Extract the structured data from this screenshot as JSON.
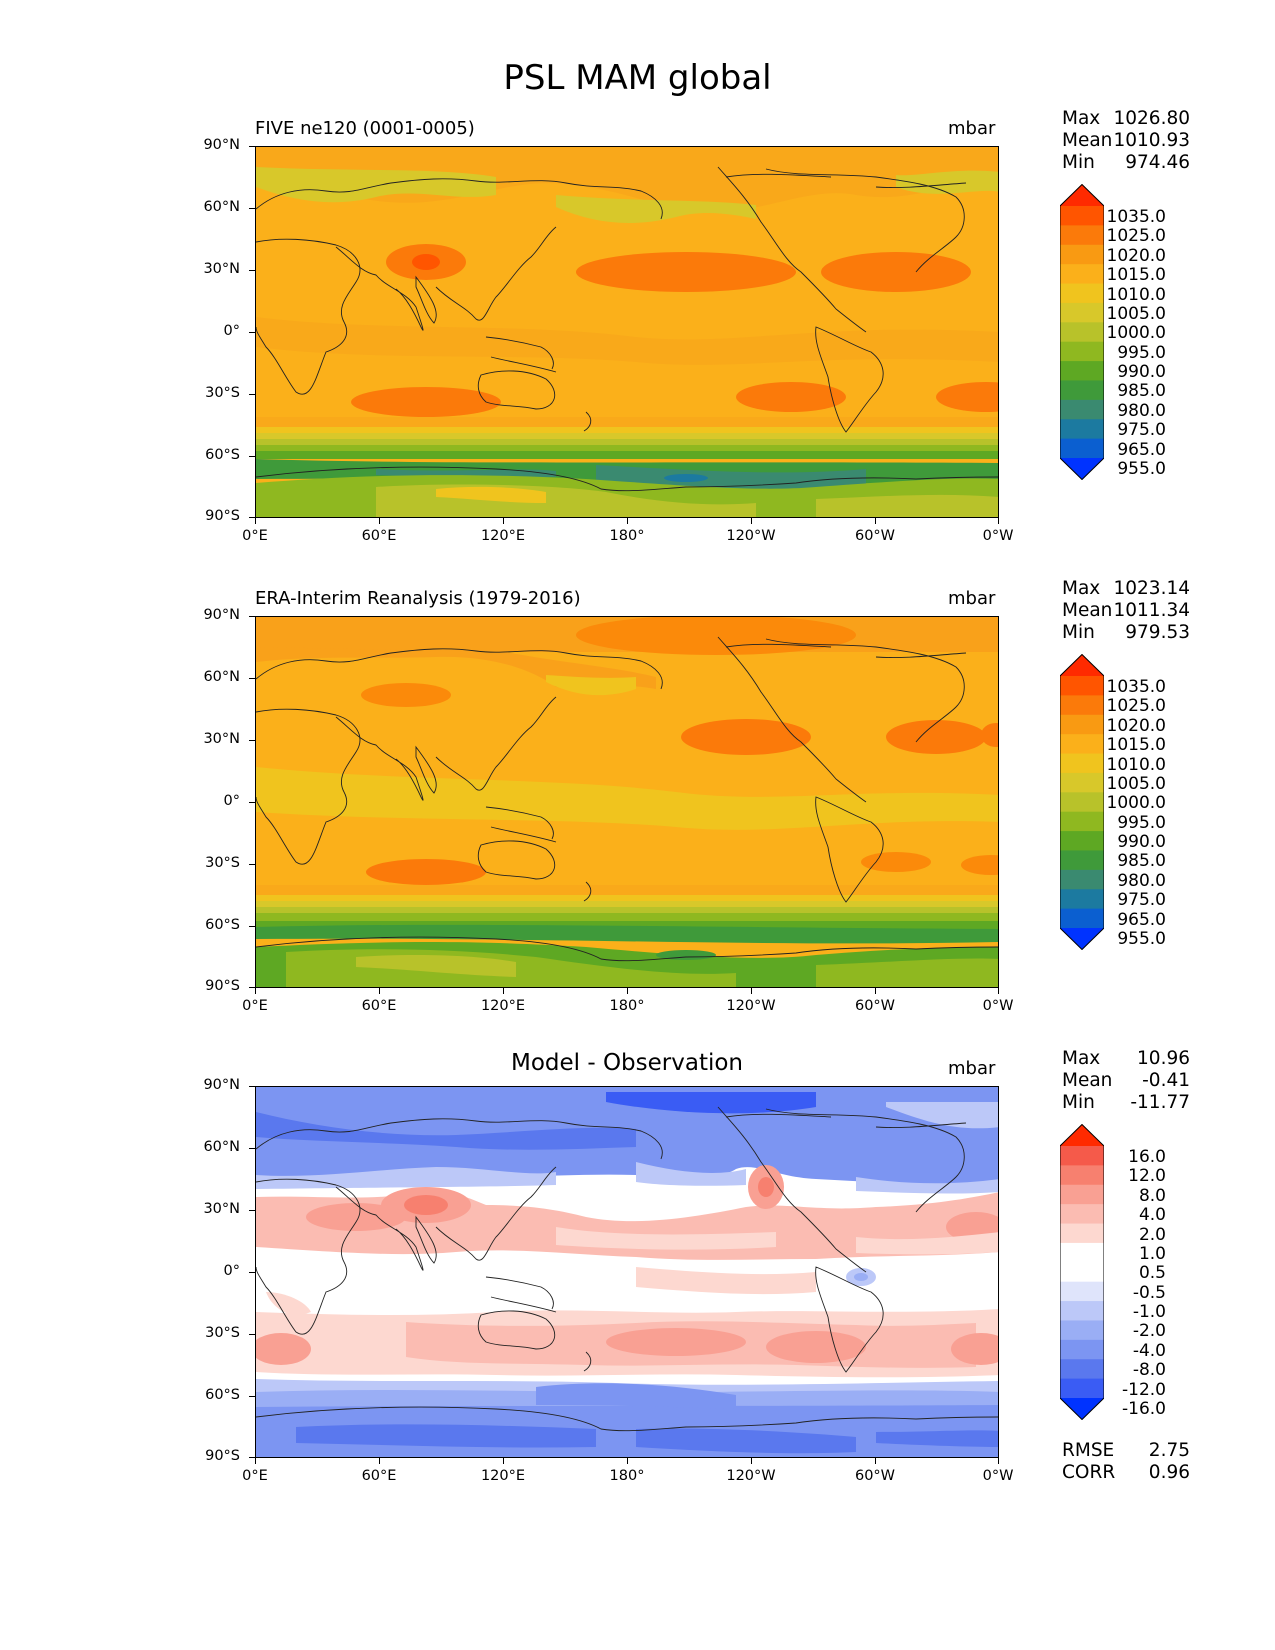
{
  "figure_title": "PSL MAM global",
  "axis": {
    "yticks": [
      "90°N",
      "60°N",
      "30°N",
      "0°",
      "30°S",
      "60°S",
      "90°S"
    ],
    "xticks": [
      "0°E",
      "60°E",
      "120°E",
      "180°",
      "120°W",
      "60°W",
      "0°W"
    ]
  },
  "panels": [
    {
      "title": "FIVE ne120 (0001-0005)",
      "units": "mbar",
      "stats": [
        {
          "label": "Max",
          "value": "1026.80"
        },
        {
          "label": "Mean",
          "value": "1010.93"
        },
        {
          "label": "Min",
          "value": "974.46"
        }
      ],
      "colorbar_labels": [
        "1035.0",
        "1025.0",
        "1020.0",
        "1015.0",
        "1010.0",
        "1005.0",
        "1000.0",
        "995.0",
        "990.0",
        "985.0",
        "980.0",
        "975.0",
        "965.0",
        "955.0"
      ]
    },
    {
      "title": "ERA-Interim Reanalysis (1979-2016)",
      "units": "mbar",
      "stats": [
        {
          "label": "Max",
          "value": "1023.14"
        },
        {
          "label": "Mean",
          "value": "1011.34"
        },
        {
          "label": "Min",
          "value": "979.53"
        }
      ],
      "colorbar_labels": [
        "1035.0",
        "1025.0",
        "1020.0",
        "1015.0",
        "1010.0",
        "1005.0",
        "1000.0",
        "995.0",
        "990.0",
        "985.0",
        "980.0",
        "975.0",
        "965.0",
        "955.0"
      ]
    },
    {
      "title": "Model - Observation",
      "units": "mbar",
      "stats": [
        {
          "label": "Max",
          "value": "10.96"
        },
        {
          "label": "Mean",
          "value": "-0.41"
        },
        {
          "label": "Min",
          "value": "-11.77"
        }
      ],
      "colorbar_labels": [
        "16.0",
        "12.0",
        "8.0",
        "4.0",
        "2.0",
        "1.0",
        "0.5",
        "-0.5",
        "-1.0",
        "-2.0",
        "-4.0",
        "-8.0",
        "-12.0",
        "-16.0"
      ],
      "footer": [
        {
          "label": "RMSE",
          "value": "2.75"
        },
        {
          "label": "CORR",
          "value": "0.96"
        }
      ]
    }
  ],
  "colors": {
    "psl_scale": [
      "#ff2a00",
      "#ff5500",
      "#fb7a0a",
      "#f99a12",
      "#fbb01a",
      "#f0c41e",
      "#d8c82a",
      "#b8c22a",
      "#8fb820",
      "#5ea823",
      "#3f9a3a",
      "#3a8a70",
      "#1c7aa0",
      "#0b5fd0",
      "#0033ff"
    ],
    "diff_scale": [
      "#ff2a00",
      "#f55a4a",
      "#f7806f",
      "#f9a093",
      "#fbbcb2",
      "#fdd8d0",
      "#ffffff",
      "#ffffff",
      "#dfe4fb",
      "#bcc8f8",
      "#9aaef5",
      "#7c95f2",
      "#5a78ee",
      "#3a5cf4",
      "#0033ff"
    ]
  }
}
